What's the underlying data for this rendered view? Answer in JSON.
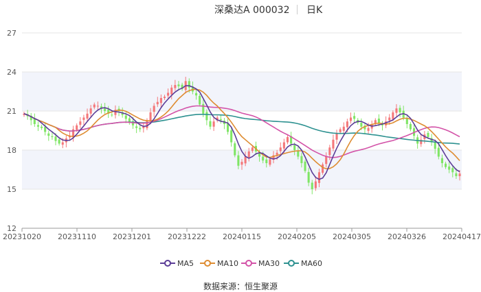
{
  "header": {
    "name": "深桑达A 000032",
    "period": "日K"
  },
  "legend": {
    "ma5": "MA5",
    "ma10": "MA10",
    "ma30": "MA30",
    "ma60": "MA60"
  },
  "source": "数据来源：恒生聚源",
  "colors": {
    "up": "#f4777a",
    "down": "#7fe565",
    "ma5": "#5b3c97",
    "ma10": "#de8c31",
    "ma30": "#d353a8",
    "ma60": "#2d9190",
    "grid": "#e6e6e6",
    "band": "#f2f4fb"
  },
  "chart_data": {
    "type": "candlestick",
    "ylim": [
      12,
      27
    ],
    "yticks": [
      12,
      15,
      18,
      21,
      24,
      27
    ],
    "xticks": [
      "20231020",
      "20231110",
      "20231201",
      "20231222",
      "20240115",
      "20240205",
      "20240305",
      "20240326",
      "20240417"
    ],
    "closes": [
      20.8,
      20.6,
      20.3,
      20.0,
      19.8,
      19.7,
      19.4,
      19.1,
      19.0,
      18.7,
      18.5,
      18.6,
      18.9,
      19.1,
      19.6,
      19.9,
      20.2,
      20.5,
      20.8,
      21.2,
      21.5,
      21.4,
      21.2,
      21.0,
      20.8,
      20.7,
      21.1,
      21.0,
      20.7,
      20.4,
      20.1,
      19.9,
      19.7,
      19.6,
      19.8,
      20.3,
      20.9,
      21.4,
      21.7,
      22.0,
      22.1,
      22.4,
      22.8,
      23.0,
      22.9,
      22.7,
      23.3,
      22.8,
      22.5,
      22.2,
      21.5,
      20.8,
      20.3,
      19.8,
      20.2,
      20.5,
      20.3,
      20.0,
      19.4,
      18.6,
      17.6,
      16.8,
      17.1,
      17.5,
      17.9,
      18.2,
      17.9,
      17.5,
      17.2,
      17.0,
      17.3,
      17.6,
      17.8,
      18.2,
      18.6,
      19.0,
      18.5,
      18.0,
      17.5,
      17.0,
      16.4,
      15.5,
      15.0,
      15.6,
      16.3,
      16.9,
      17.5,
      18.2,
      18.8,
      19.3,
      19.6,
      19.8,
      20.2,
      20.5,
      20.4,
      20.1,
      19.8,
      19.6,
      19.7,
      20.0,
      20.3,
      20.1,
      19.9,
      20.2,
      20.5,
      20.9,
      21.2,
      20.9,
      20.5,
      20.0,
      19.6,
      19.1,
      18.5,
      18.8,
      19.2,
      19.0,
      18.6,
      18.1,
      17.5,
      17.0,
      16.7,
      16.5,
      16.3,
      16.0,
      16.2
    ]
  }
}
